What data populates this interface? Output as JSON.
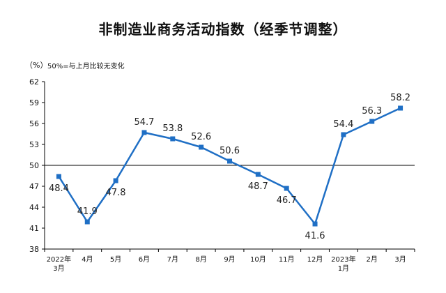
{
  "chart_data": {
    "type": "line",
    "title": "非制造业商务活动指数（经季节调整）",
    "y_unit_label": "（%）",
    "note": "50%=与上月比较无变化",
    "categories": [
      [
        "2022年",
        "3月"
      ],
      [
        "4月"
      ],
      [
        "5月"
      ],
      [
        "6月"
      ],
      [
        "7月"
      ],
      [
        "8月"
      ],
      [
        "9月"
      ],
      [
        "10月"
      ],
      [
        "11月"
      ],
      [
        "12月"
      ],
      [
        "2023年",
        "1月"
      ],
      [
        "2月"
      ],
      [
        "3月"
      ]
    ],
    "series": [
      {
        "values": [
          48.4,
          41.9,
          47.8,
          54.7,
          53.8,
          52.6,
          50.6,
          48.7,
          46.7,
          41.6,
          54.4,
          56.3,
          58.2
        ],
        "color": "#1f6fc5"
      }
    ],
    "reference_line": 50,
    "ylim": [
      38,
      62
    ],
    "yticks": [
      38,
      41,
      44,
      47,
      50,
      53,
      56,
      59,
      62
    ],
    "grid": false,
    "label_positions": [
      "below",
      "above",
      "below",
      "above",
      "above",
      "above",
      "above",
      "below",
      "below",
      "below",
      "above",
      "above",
      "above"
    ]
  },
  "colors": {
    "line": "#1f6fc5",
    "axis": "#000000",
    "reference": "#000000"
  }
}
